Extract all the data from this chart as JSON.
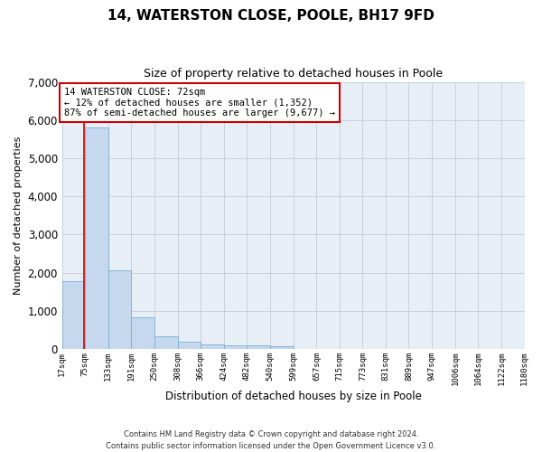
{
  "title": "14, WATERSTON CLOSE, POOLE, BH17 9FD",
  "subtitle": "Size of property relative to detached houses in Poole",
  "xlabel": "Distribution of detached houses by size in Poole",
  "ylabel": "Number of detached properties",
  "bar_color": "#c5d8ee",
  "bar_edge_color": "#7aafd4",
  "grid_color": "#c8d0dc",
  "background_color": "#e8eef6",
  "annotation_line_color": "#cc0000",
  "annotation_box_color": "#cc0000",
  "annotation_text": "14 WATERSTON CLOSE: 72sqm\n← 12% of detached houses are smaller (1,352)\n87% of semi-detached houses are larger (9,677) →",
  "property_size": 72,
  "footnote": "Contains HM Land Registry data © Crown copyright and database right 2024.\nContains public sector information licensed under the Open Government Licence v3.0.",
  "bins": [
    17,
    75,
    133,
    191,
    250,
    308,
    366,
    424,
    482,
    540,
    599,
    657,
    715,
    773,
    831,
    889,
    947,
    1006,
    1064,
    1122,
    1180
  ],
  "counts": [
    1780,
    5800,
    2060,
    820,
    340,
    185,
    120,
    100,
    95,
    65,
    0,
    0,
    0,
    0,
    0,
    0,
    0,
    0,
    0,
    0
  ],
  "ylim": [
    0,
    7000
  ],
  "yticks": [
    0,
    1000,
    2000,
    3000,
    4000,
    5000,
    6000,
    7000
  ]
}
